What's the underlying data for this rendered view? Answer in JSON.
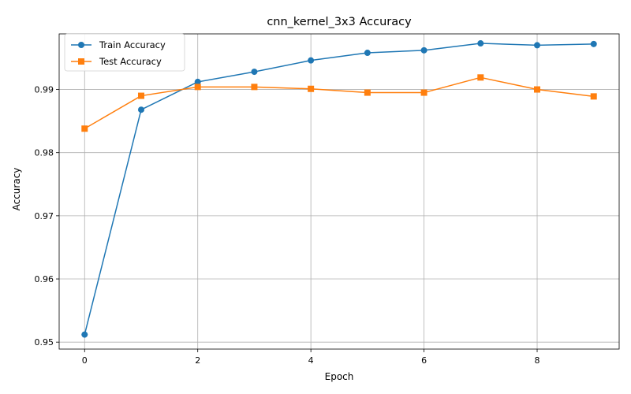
{
  "chart_data": {
    "type": "line",
    "title": "cnn_kernel_3x3 Accuracy",
    "xlabel": "Epoch",
    "ylabel": "Accuracy",
    "x": [
      0,
      1,
      2,
      3,
      4,
      5,
      6,
      7,
      8,
      9
    ],
    "xlim": [
      -0.45,
      9.45
    ],
    "ylim": [
      0.9489,
      0.9988
    ],
    "xticks": [
      0,
      2,
      4,
      6,
      8
    ],
    "xtick_labels": [
      "0",
      "2",
      "4",
      "6",
      "8"
    ],
    "yticks": [
      0.95,
      0.96,
      0.97,
      0.98,
      0.99
    ],
    "ytick_labels": [
      "0.95",
      "0.96",
      "0.97",
      "0.98",
      "0.99"
    ],
    "grid": true,
    "legend_position": "top-left",
    "series": [
      {
        "name": "Train Accuracy",
        "color": "#1f77b4",
        "marker": "circle",
        "values": [
          0.9512,
          0.9868,
          0.9912,
          0.9928,
          0.9946,
          0.9958,
          0.9962,
          0.9973,
          0.997,
          0.9972
        ]
      },
      {
        "name": "Test Accuracy",
        "color": "#ff7f0e",
        "marker": "square",
        "values": [
          0.9838,
          0.989,
          0.9904,
          0.9904,
          0.9901,
          0.9895,
          0.9895,
          0.9919,
          0.99,
          0.9889
        ]
      }
    ]
  }
}
